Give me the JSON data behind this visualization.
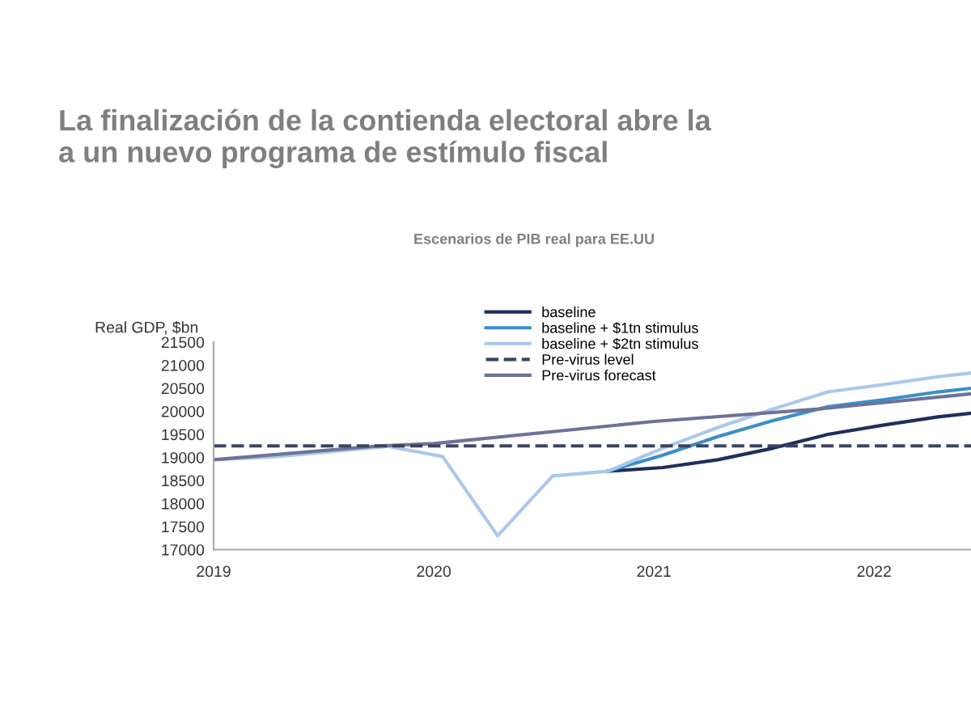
{
  "chart_data": {
    "type": "line",
    "title": "La finalización de la contienda electoral abre la\na un nuevo programa de estímulo fiscal",
    "subtitle": "Escenarios de PIB real para EE.UU",
    "ylabel": "Real GDP, $bn",
    "xlim": [
      2019,
      2022.44
    ],
    "xticks": [
      2019,
      2020,
      2021,
      2022
    ],
    "ylim": [
      17000,
      21500
    ],
    "yticks": [
      17000,
      17500,
      18000,
      18500,
      19000,
      19500,
      20000,
      20500,
      21000,
      21500
    ],
    "grid": false,
    "legend": "top",
    "line_style": "solid",
    "marker": "none",
    "series": [
      {
        "name": "baseline",
        "color": "#1f2f5c",
        "x": [
          2020.79,
          2021.04,
          2021.29,
          2021.54,
          2021.79,
          2022.04,
          2022.29,
          2022.44
        ],
        "values": [
          18700,
          18780,
          18950,
          19200,
          19500,
          19700,
          19880,
          19960
        ]
      },
      {
        "name": "baseline + $1tn stimulus",
        "color": "#3a8fc8",
        "x": [
          2020.79,
          2021.04,
          2021.29,
          2021.54,
          2021.79,
          2022.04,
          2022.29,
          2022.44
        ],
        "values": [
          18700,
          19050,
          19450,
          19800,
          20100,
          20250,
          20420,
          20500
        ]
      },
      {
        "name": "baseline + $2tn stimulus",
        "color": "#a9c8ec",
        "x": [
          2019.0,
          2019.29,
          2019.54,
          2019.79,
          2020.04,
          2020.29,
          2020.54,
          2020.79,
          2021.04,
          2021.29,
          2021.54,
          2021.79,
          2022.04,
          2022.29,
          2022.44
        ],
        "values": [
          18950,
          19020,
          19130,
          19240,
          19020,
          17300,
          18600,
          18700,
          19200,
          19650,
          20050,
          20420,
          20580,
          20750,
          20830
        ]
      },
      {
        "name": "Pre-virus forecast",
        "color": "#6e7299",
        "x": [
          2019.0,
          2019.75,
          2020.0,
          2021.0,
          2021.75,
          2022.44
        ],
        "values": [
          18950,
          19250,
          19300,
          19780,
          20050,
          20380
        ]
      }
    ],
    "ref_lines": [
      {
        "axis": "y",
        "value": 19250,
        "label": "Pre-virus level",
        "color": "#3b4560",
        "line_style": "dashed"
      }
    ]
  }
}
